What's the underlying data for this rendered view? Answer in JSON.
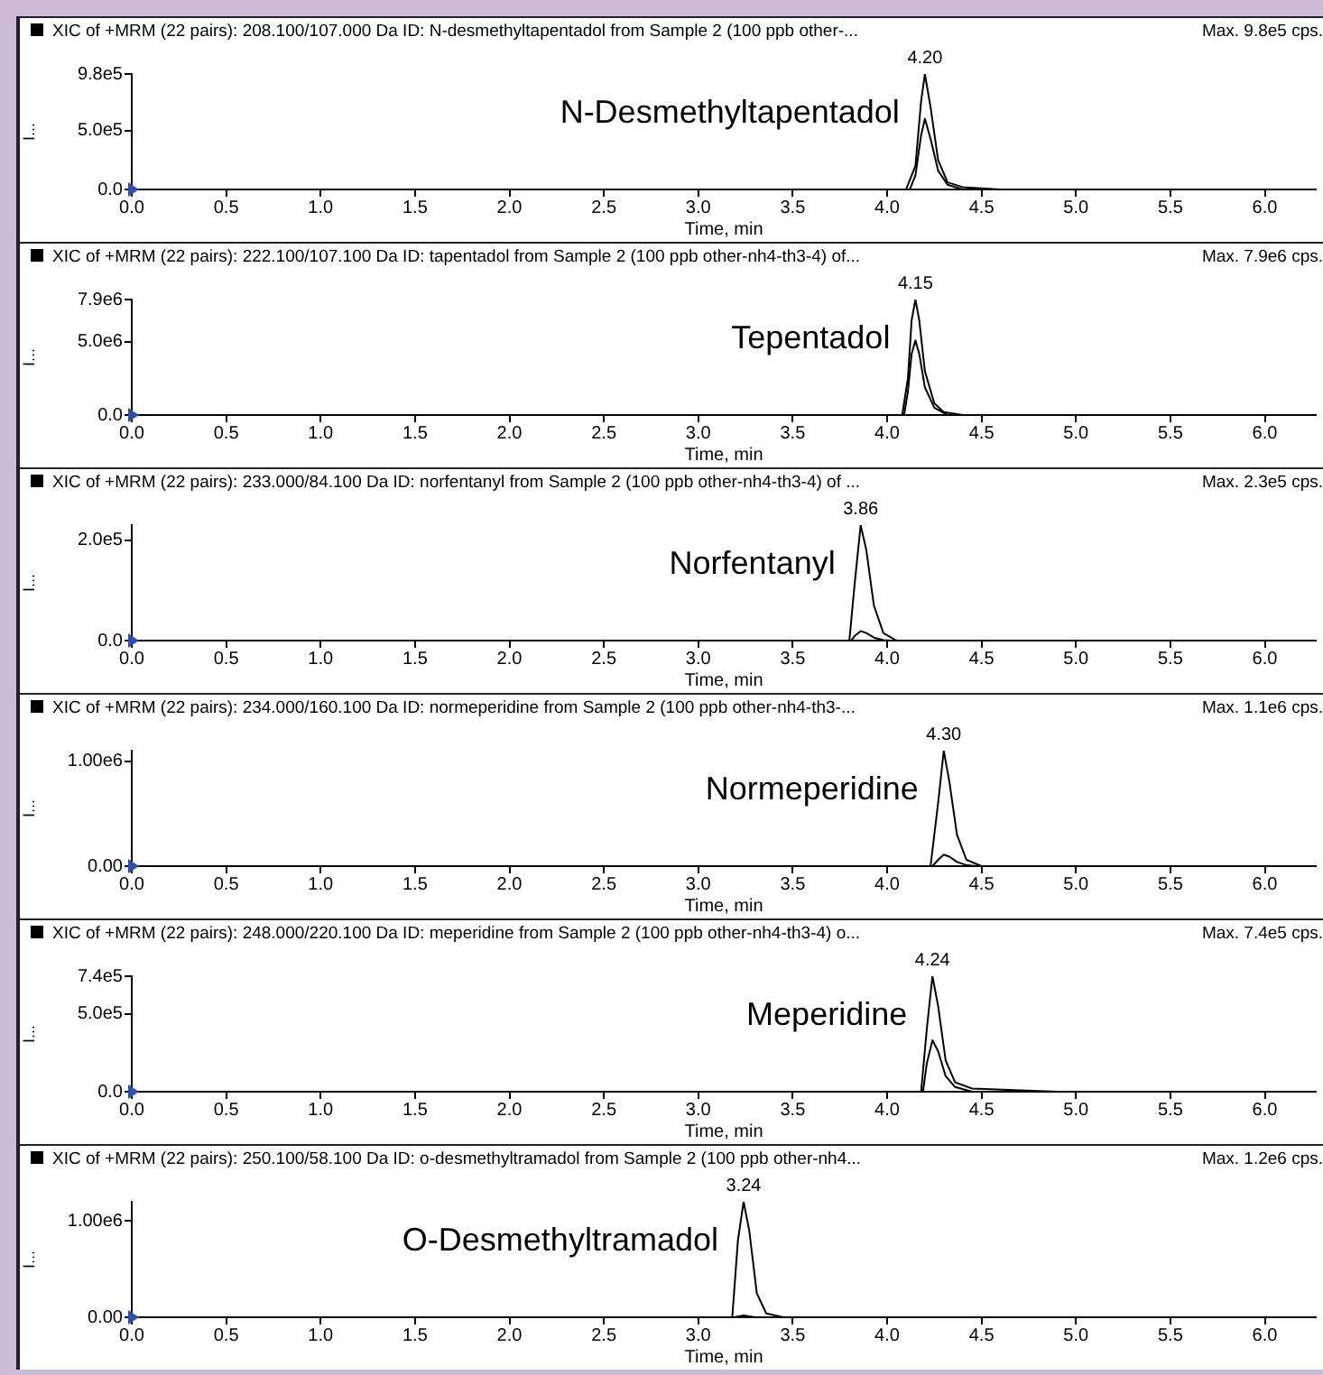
{
  "chart_data": [
    {
      "type": "line",
      "title": "XIC of +MRM (22 pairs): 208.100/107.000 Da ID: N-desmethyltapentadol from Sample 2 (100 ppb other-...",
      "xlabel": "Time, min",
      "ylabel": "I...",
      "annotations": [
        "Max. 9.8e5 cps.",
        {
          "text": "4.20",
          "x": 4.2,
          "y": 980000
        },
        "N-Desmethyltapentadol"
      ],
      "series": [
        {
          "color": "#000000",
          "x": [
            0,
            4.1,
            4.15,
            4.18,
            4.2,
            4.23,
            4.27,
            4.32,
            4.4,
            4.6,
            6.27
          ],
          "values": [
            0,
            0,
            200000,
            750000,
            980000,
            700000,
            250000,
            60000,
            20000,
            0,
            0
          ]
        },
        {
          "color": "#000000",
          "x": [
            4.12,
            4.15,
            4.18,
            4.2,
            4.23,
            4.27,
            4.32,
            4.4
          ],
          "values": [
            0,
            120000,
            460000,
            600000,
            430000,
            160000,
            40000,
            0
          ]
        }
      ],
      "xlim": [
        0,
        6.27
      ],
      "xticks": [
        {
          "value": 0,
          "label": "0.0"
        },
        0.5,
        {
          "value": 1,
          "label": "1.0"
        },
        1.5,
        {
          "value": 2,
          "label": "2.0"
        },
        2.5,
        {
          "value": 3,
          "label": "3.0"
        },
        3.5,
        {
          "value": 4,
          "label": "4.0"
        },
        4.5,
        {
          "value": 5,
          "label": "5.0"
        },
        5.5,
        {
          "value": 6,
          "label": "6.0"
        }
      ],
      "ylim": [
        0,
        980000
      ],
      "yticks": [
        {
          "value": 0,
          "label": "0.0"
        },
        {
          "value": 500000,
          "label": "5.0e5"
        },
        {
          "value": 980000,
          "label": "9.8e5"
        }
      ],
      "grid": false,
      "legend": false,
      "marker": "none",
      "line_style": "solid"
    },
    {
      "type": "line",
      "title": "XIC of +MRM (22 pairs): 222.100/107.100 Da ID: tapentadol from Sample 2 (100 ppb other-nh4-th3-4) of...",
      "xlabel": "Time, min",
      "ylabel": "I...",
      "annotations": [
        "Max. 7.9e6 cps.",
        {
          "text": "4.15",
          "x": 4.15,
          "y": 7900000
        },
        "Tepentadol"
      ],
      "series": [
        {
          "color": "#000000",
          "x": [
            0,
            4.08,
            4.11,
            4.13,
            4.15,
            4.17,
            4.2,
            4.25,
            4.3,
            4.4,
            6.27
          ],
          "values": [
            0,
            0,
            2500000,
            6500000,
            7900000,
            6500000,
            3000000,
            800000,
            200000,
            0,
            0
          ]
        },
        {
          "color": "#000000",
          "x": [
            4.09,
            4.11,
            4.13,
            4.15,
            4.17,
            4.2,
            4.25,
            4.32
          ],
          "values": [
            0,
            1600000,
            4200000,
            5100000,
            4200000,
            1900000,
            500000,
            0
          ]
        }
      ],
      "xlim": [
        0,
        6.27
      ],
      "xticks": [
        {
          "value": 0,
          "label": "0.0"
        },
        0.5,
        {
          "value": 1,
          "label": "1.0"
        },
        1.5,
        {
          "value": 2,
          "label": "2.0"
        },
        2.5,
        {
          "value": 3,
          "label": "3.0"
        },
        3.5,
        {
          "value": 4,
          "label": "4.0"
        },
        4.5,
        {
          "value": 5,
          "label": "5.0"
        },
        5.5,
        {
          "value": 6,
          "label": "6.0"
        }
      ],
      "ylim": [
        0,
        7900000
      ],
      "yticks": [
        {
          "value": 0,
          "label": "0.0"
        },
        {
          "value": 5000000,
          "label": "5.0e6"
        },
        {
          "value": 7900000,
          "label": "7.9e6"
        }
      ],
      "grid": false,
      "legend": false,
      "marker": "none",
      "line_style": "solid"
    },
    {
      "type": "line",
      "title": "XIC of +MRM (22 pairs): 233.000/84.100 Da ID: norfentanyl from Sample 2 (100 ppb other-nh4-th3-4) of ...",
      "xlabel": "Time, min",
      "ylabel": "I...",
      "annotations": [
        "Max. 2.3e5 cps.",
        {
          "text": "3.86",
          "x": 3.86,
          "y": 230000
        },
        "Norfentanyl"
      ],
      "series": [
        {
          "color": "#000000",
          "x": [
            0,
            3.8,
            3.83,
            3.86,
            3.89,
            3.93,
            3.98,
            4.05,
            6.27
          ],
          "values": [
            0,
            0,
            120000,
            230000,
            180000,
            70000,
            15000,
            0,
            0
          ]
        },
        {
          "color": "#000000",
          "x": [
            3.81,
            3.83,
            3.86,
            3.89,
            3.93,
            3.98,
            4.02
          ],
          "values": [
            0,
            10000,
            19000,
            15000,
            6000,
            1000,
            0
          ]
        }
      ],
      "xlim": [
        0,
        6.27
      ],
      "xticks": [
        {
          "value": 0,
          "label": "0.0"
        },
        0.5,
        {
          "value": 1,
          "label": "1.0"
        },
        1.5,
        {
          "value": 2,
          "label": "2.0"
        },
        2.5,
        {
          "value": 3,
          "label": "3.0"
        },
        3.5,
        {
          "value": 4,
          "label": "4.0"
        },
        4.5,
        {
          "value": 5,
          "label": "5.0"
        },
        5.5,
        {
          "value": 6,
          "label": "6.0"
        }
      ],
      "ylim": [
        0,
        230000
      ],
      "yticks": [
        {
          "value": 0,
          "label": "0.0"
        },
        {
          "value": 200000,
          "label": "2.0e5"
        }
      ],
      "grid": false,
      "legend": false,
      "marker": "none",
      "line_style": "solid"
    },
    {
      "type": "line",
      "title": "XIC of +MRM (22 pairs): 234.000/160.100 Da ID: normeperidine from Sample 2 (100 ppb other-nh4-th3-...",
      "xlabel": "Time, min",
      "ylabel": "I...",
      "annotations": [
        "Max. 1.1e6 cps.",
        {
          "text": "4.30",
          "x": 4.3,
          "y": 1100000
        },
        "Normeperidine"
      ],
      "series": [
        {
          "color": "#000000",
          "x": [
            0,
            4.23,
            4.27,
            4.3,
            4.33,
            4.37,
            4.42,
            4.5,
            6.27
          ],
          "values": [
            0,
            0,
            600000,
            1100000,
            800000,
            300000,
            60000,
            0,
            0
          ]
        },
        {
          "color": "#000000",
          "x": [
            4.24,
            4.27,
            4.3,
            4.33,
            4.37,
            4.42,
            4.47
          ],
          "values": [
            0,
            60000,
            110000,
            90000,
            40000,
            10000,
            0
          ]
        }
      ],
      "xlim": [
        0,
        6.27
      ],
      "xticks": [
        {
          "value": 0,
          "label": "0.0"
        },
        0.5,
        {
          "value": 1,
          "label": "1.0"
        },
        1.5,
        {
          "value": 2,
          "label": "2.0"
        },
        2.5,
        {
          "value": 3,
          "label": "3.0"
        },
        3.5,
        {
          "value": 4,
          "label": "4.0"
        },
        4.5,
        {
          "value": 5,
          "label": "5.0"
        },
        5.5,
        {
          "value": 6,
          "label": "6.0"
        }
      ],
      "ylim": [
        0,
        1100000
      ],
      "yticks": [
        {
          "value": 0,
          "label": "0.00"
        },
        {
          "value": 1000000,
          "label": "1.00e6"
        }
      ],
      "grid": false,
      "legend": false,
      "marker": "none",
      "line_style": "solid"
    },
    {
      "type": "line",
      "title": "XIC of +MRM (22 pairs): 248.000/220.100 Da ID: meperidine from Sample 2 (100 ppb other-nh4-th3-4) o...",
      "xlabel": "Time, min",
      "ylabel": "I...",
      "annotations": [
        "Max. 7.4e5 cps.",
        {
          "text": "4.24",
          "x": 4.24,
          "y": 740000
        },
        "Meperidine"
      ],
      "series": [
        {
          "color": "#000000",
          "x": [
            0,
            4.18,
            4.21,
            4.24,
            4.27,
            4.31,
            4.36,
            4.45,
            4.9,
            6.27
          ],
          "values": [
            0,
            0,
            400000,
            740000,
            550000,
            200000,
            60000,
            20000,
            0,
            0
          ]
        },
        {
          "color": "#000000",
          "x": [
            4.19,
            4.21,
            4.24,
            4.27,
            4.31,
            4.36,
            4.45
          ],
          "values": [
            0,
            180000,
            330000,
            260000,
            100000,
            30000,
            0
          ]
        }
      ],
      "xlim": [
        0,
        6.27
      ],
      "xticks": [
        {
          "value": 0,
          "label": "0.0"
        },
        0.5,
        {
          "value": 1,
          "label": "1.0"
        },
        1.5,
        {
          "value": 2,
          "label": "2.0"
        },
        2.5,
        {
          "value": 3,
          "label": "3.0"
        },
        3.5,
        {
          "value": 4,
          "label": "4.0"
        },
        4.5,
        {
          "value": 5,
          "label": "5.0"
        },
        5.5,
        {
          "value": 6,
          "label": "6.0"
        }
      ],
      "ylim": [
        0,
        740000
      ],
      "yticks": [
        {
          "value": 0,
          "label": "0.0"
        },
        {
          "value": 500000,
          "label": "5.0e5"
        },
        {
          "value": 740000,
          "label": "7.4e5"
        }
      ],
      "grid": false,
      "legend": false,
      "marker": "none",
      "line_style": "solid"
    },
    {
      "type": "line",
      "title": "XIC of +MRM (22 pairs): 250.100/58.100 Da ID: o-desmethyltramadol from Sample 2 (100 ppb other-nh4...",
      "xlabel": "Time, min",
      "ylabel": "I...",
      "annotations": [
        "Max. 1.2e6 cps.",
        {
          "text": "3.24",
          "x": 3.24,
          "y": 1200000
        },
        "O-Desmethyltramadol"
      ],
      "series": [
        {
          "color": "#000000",
          "x": [
            0,
            3.18,
            3.21,
            3.24,
            3.27,
            3.31,
            3.36,
            3.45,
            6.27
          ],
          "values": [
            0,
            0,
            800000,
            1200000,
            900000,
            250000,
            40000,
            0,
            0
          ]
        },
        {
          "color": "#000000",
          "x": [
            3.19,
            3.24,
            3.3
          ],
          "values": [
            0,
            20000,
            0
          ]
        }
      ],
      "xlim": [
        0,
        6.27
      ],
      "xticks": [
        {
          "value": 0,
          "label": "0.0"
        },
        0.5,
        {
          "value": 1,
          "label": "1.0"
        },
        1.5,
        {
          "value": 2,
          "label": "2.0"
        },
        2.5,
        {
          "value": 3,
          "label": "3.0"
        },
        3.5,
        {
          "value": 4,
          "label": "4.0"
        },
        4.5,
        {
          "value": 5,
          "label": "5.0"
        },
        5.5,
        {
          "value": 6,
          "label": "6.0"
        }
      ],
      "ylim": [
        0,
        1200000
      ],
      "yticks": [
        {
          "value": 0,
          "label": "0.00"
        },
        {
          "value": 1000000,
          "label": "1.00e6"
        }
      ],
      "grid": false,
      "legend": false,
      "marker": "none",
      "line_style": "solid"
    }
  ]
}
